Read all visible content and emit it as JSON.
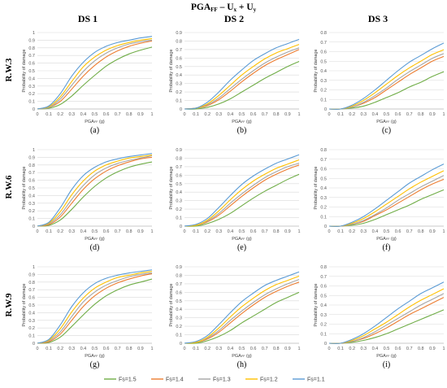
{
  "figure": {
    "super_title": "PGA",
    "super_title_sub": "FF",
    "super_title_rest": " – U",
    "super_title_ux_sub": "x",
    "super_title_plus": " + U",
    "super_title_uy_sub": "y",
    "column_titles": [
      "DS 1",
      "DS 2",
      "DS 3"
    ],
    "row_titles": [
      "R.W.3",
      "R.W.6",
      "R.W.9"
    ],
    "panel_letters": [
      "(a)",
      "(b)",
      "(c)",
      "(d)",
      "(e)",
      "(f)",
      "(g)",
      "(h)",
      "(i)"
    ],
    "ylabel": "Probability of damage",
    "xlabel_main": "PGA",
    "xlabel_sub": "FF",
    "xlabel_unit": " (g)",
    "legend": [
      "Fs=1.5",
      "Fs=1.4",
      "Fs=1.3",
      "Fs=1.2",
      "Fs=1.1"
    ],
    "colors": [
      "#70ad47",
      "#ed7d31",
      "#a5a5a5",
      "#ffc000",
      "#5b9bd5"
    ],
    "grid_color": "#d9d9d9"
  },
  "chart_data": [
    {
      "type": "line",
      "panel": "(a)",
      "row": "R.W.3",
      "column": "DS 1",
      "xlim": [
        0,
        1
      ],
      "ylim": [
        0,
        1
      ],
      "x": [
        0,
        0.1,
        0.2,
        0.3,
        0.4,
        0.5,
        0.6,
        0.7,
        0.8,
        0.9,
        1.0
      ],
      "yticks": [
        0,
        0.1,
        0.2,
        0.3,
        0.4,
        0.5,
        0.6,
        0.7,
        0.8,
        0.9,
        1
      ],
      "series": [
        {
          "name": "Fs=1.5",
          "values": [
            0,
            0.01,
            0.06,
            0.17,
            0.31,
            0.44,
            0.56,
            0.65,
            0.72,
            0.77,
            0.81
          ]
        },
        {
          "name": "Fs=1.4",
          "values": [
            0,
            0.02,
            0.1,
            0.26,
            0.43,
            0.57,
            0.68,
            0.76,
            0.82,
            0.86,
            0.89
          ]
        },
        {
          "name": "Fs=1.3",
          "values": [
            0,
            0.02,
            0.13,
            0.31,
            0.49,
            0.63,
            0.73,
            0.8,
            0.85,
            0.88,
            0.9
          ]
        },
        {
          "name": "Fs=1.2",
          "values": [
            0,
            0.03,
            0.16,
            0.36,
            0.55,
            0.68,
            0.77,
            0.83,
            0.87,
            0.9,
            0.92
          ]
        },
        {
          "name": "Fs=1.1",
          "values": [
            0,
            0.04,
            0.2,
            0.43,
            0.61,
            0.74,
            0.82,
            0.87,
            0.9,
            0.93,
            0.95
          ]
        }
      ]
    },
    {
      "type": "line",
      "panel": "(b)",
      "row": "R.W.3",
      "column": "DS 2",
      "xlim": [
        0,
        1
      ],
      "ylim": [
        0,
        0.9
      ],
      "x": [
        0,
        0.1,
        0.2,
        0.3,
        0.4,
        0.5,
        0.6,
        0.7,
        0.8,
        0.9,
        1.0
      ],
      "yticks": [
        0,
        0.1,
        0.2,
        0.3,
        0.4,
        0.5,
        0.6,
        0.7,
        0.8,
        0.9
      ],
      "series": [
        {
          "name": "Fs=1.5",
          "values": [
            0,
            0.0,
            0.02,
            0.06,
            0.12,
            0.2,
            0.28,
            0.36,
            0.43,
            0.5,
            0.56
          ]
        },
        {
          "name": "Fs=1.4",
          "values": [
            0,
            0.01,
            0.04,
            0.11,
            0.21,
            0.32,
            0.42,
            0.51,
            0.58,
            0.64,
            0.7
          ]
        },
        {
          "name": "Fs=1.3",
          "values": [
            0,
            0.01,
            0.05,
            0.13,
            0.24,
            0.35,
            0.45,
            0.54,
            0.61,
            0.67,
            0.72
          ]
        },
        {
          "name": "Fs=1.2",
          "values": [
            0,
            0.01,
            0.06,
            0.16,
            0.28,
            0.4,
            0.5,
            0.59,
            0.66,
            0.71,
            0.76
          ]
        },
        {
          "name": "Fs=1.1",
          "values": [
            0,
            0.01,
            0.08,
            0.2,
            0.34,
            0.46,
            0.57,
            0.65,
            0.72,
            0.77,
            0.82
          ]
        }
      ]
    },
    {
      "type": "line",
      "panel": "(c)",
      "row": "R.W.3",
      "column": "DS 3",
      "xlim": [
        0,
        1
      ],
      "ylim": [
        0,
        0.8
      ],
      "x": [
        0,
        0.1,
        0.2,
        0.3,
        0.4,
        0.5,
        0.6,
        0.7,
        0.8,
        0.9,
        1.0
      ],
      "yticks": [
        0,
        0.1,
        0.2,
        0.3,
        0.4,
        0.5,
        0.6,
        0.7,
        0.8
      ],
      "series": [
        {
          "name": "Fs=1.5",
          "values": [
            0,
            0.0,
            0.01,
            0.03,
            0.07,
            0.12,
            0.17,
            0.23,
            0.28,
            0.34,
            0.39
          ]
        },
        {
          "name": "Fs=1.4",
          "values": [
            0,
            0.0,
            0.02,
            0.06,
            0.12,
            0.2,
            0.28,
            0.36,
            0.43,
            0.5,
            0.55
          ]
        },
        {
          "name": "Fs=1.3",
          "values": [
            0,
            0.0,
            0.02,
            0.07,
            0.14,
            0.22,
            0.31,
            0.39,
            0.46,
            0.53,
            0.58
          ]
        },
        {
          "name": "Fs=1.2",
          "values": [
            0,
            0.0,
            0.03,
            0.09,
            0.17,
            0.26,
            0.35,
            0.43,
            0.5,
            0.57,
            0.62
          ]
        },
        {
          "name": "Fs=1.1",
          "values": [
            0,
            0.0,
            0.04,
            0.11,
            0.2,
            0.3,
            0.4,
            0.49,
            0.56,
            0.63,
            0.69
          ]
        }
      ]
    },
    {
      "type": "line",
      "panel": "(d)",
      "row": "R.W.6",
      "column": "DS 1",
      "xlim": [
        0,
        1
      ],
      "ylim": [
        0,
        1
      ],
      "x": [
        0,
        0.1,
        0.2,
        0.3,
        0.4,
        0.5,
        0.6,
        0.7,
        0.8,
        0.9,
        1.0
      ],
      "yticks": [
        0,
        0.1,
        0.2,
        0.3,
        0.4,
        0.5,
        0.6,
        0.7,
        0.8,
        0.9,
        1
      ],
      "series": [
        {
          "name": "Fs=1.5",
          "values": [
            0,
            0.01,
            0.08,
            0.22,
            0.38,
            0.52,
            0.63,
            0.71,
            0.77,
            0.81,
            0.84
          ]
        },
        {
          "name": "Fs=1.4",
          "values": [
            0,
            0.02,
            0.12,
            0.3,
            0.48,
            0.62,
            0.72,
            0.79,
            0.84,
            0.88,
            0.9
          ]
        },
        {
          "name": "Fs=1.3",
          "values": [
            0,
            0.03,
            0.15,
            0.35,
            0.53,
            0.67,
            0.76,
            0.82,
            0.86,
            0.89,
            0.92
          ]
        },
        {
          "name": "Fs=1.2",
          "values": [
            0,
            0.04,
            0.19,
            0.41,
            0.59,
            0.72,
            0.8,
            0.85,
            0.89,
            0.91,
            0.93
          ]
        },
        {
          "name": "Fs=1.1",
          "values": [
            0,
            0.05,
            0.24,
            0.48,
            0.66,
            0.77,
            0.84,
            0.88,
            0.91,
            0.93,
            0.95
          ]
        }
      ]
    },
    {
      "type": "line",
      "panel": "(e)",
      "row": "R.W.6",
      "column": "DS 2",
      "xlim": [
        0,
        1
      ],
      "ylim": [
        0,
        0.9
      ],
      "x": [
        0,
        0.1,
        0.2,
        0.3,
        0.4,
        0.5,
        0.6,
        0.7,
        0.8,
        0.9,
        1.0
      ],
      "yticks": [
        0,
        0.1,
        0.2,
        0.3,
        0.4,
        0.5,
        0.6,
        0.7,
        0.8,
        0.9
      ],
      "series": [
        {
          "name": "Fs=1.5",
          "values": [
            0,
            0.0,
            0.03,
            0.08,
            0.15,
            0.24,
            0.33,
            0.41,
            0.48,
            0.55,
            0.61
          ]
        },
        {
          "name": "Fs=1.4",
          "values": [
            0,
            0.01,
            0.05,
            0.13,
            0.24,
            0.35,
            0.45,
            0.54,
            0.61,
            0.67,
            0.72
          ]
        },
        {
          "name": "Fs=1.3",
          "values": [
            0,
            0.01,
            0.06,
            0.15,
            0.27,
            0.38,
            0.48,
            0.57,
            0.64,
            0.7,
            0.74
          ]
        },
        {
          "name": "Fs=1.2",
          "values": [
            0,
            0.01,
            0.07,
            0.18,
            0.31,
            0.43,
            0.53,
            0.61,
            0.68,
            0.73,
            0.78
          ]
        },
        {
          "name": "Fs=1.1",
          "values": [
            0,
            0.02,
            0.09,
            0.22,
            0.36,
            0.49,
            0.59,
            0.67,
            0.74,
            0.79,
            0.84
          ]
        }
      ]
    },
    {
      "type": "line",
      "panel": "(f)",
      "row": "R.W.6",
      "column": "DS 3",
      "xlim": [
        0,
        1
      ],
      "ylim": [
        0,
        0.8
      ],
      "x": [
        0,
        0.1,
        0.2,
        0.3,
        0.4,
        0.5,
        0.6,
        0.7,
        0.8,
        0.9,
        1.0
      ],
      "yticks": [
        0,
        0.1,
        0.2,
        0.3,
        0.4,
        0.5,
        0.6,
        0.7,
        0.8
      ],
      "series": [
        {
          "name": "Fs=1.5",
          "values": [
            0,
            0.0,
            0.01,
            0.03,
            0.07,
            0.12,
            0.17,
            0.22,
            0.28,
            0.33,
            0.38
          ]
        },
        {
          "name": "Fs=1.4",
          "values": [
            0,
            0.0,
            0.02,
            0.05,
            0.11,
            0.17,
            0.24,
            0.31,
            0.38,
            0.44,
            0.49
          ]
        },
        {
          "name": "Fs=1.3",
          "values": [
            0,
            0.0,
            0.02,
            0.06,
            0.12,
            0.19,
            0.27,
            0.34,
            0.41,
            0.47,
            0.53
          ]
        },
        {
          "name": "Fs=1.2",
          "values": [
            0,
            0.0,
            0.03,
            0.08,
            0.15,
            0.23,
            0.31,
            0.39,
            0.46,
            0.52,
            0.58
          ]
        },
        {
          "name": "Fs=1.1",
          "values": [
            0,
            0.0,
            0.04,
            0.1,
            0.18,
            0.27,
            0.36,
            0.45,
            0.52,
            0.59,
            0.65
          ]
        }
      ]
    },
    {
      "type": "line",
      "panel": "(g)",
      "row": "R.W.9",
      "column": "DS 1",
      "xlim": [
        0,
        1
      ],
      "ylim": [
        0,
        1
      ],
      "x": [
        0,
        0.1,
        0.2,
        0.3,
        0.4,
        0.5,
        0.6,
        0.7,
        0.8,
        0.9,
        1.0
      ],
      "yticks": [
        0,
        0.1,
        0.2,
        0.3,
        0.4,
        0.5,
        0.6,
        0.7,
        0.8,
        0.9,
        1
      ],
      "series": [
        {
          "name": "Fs=1.5",
          "values": [
            0,
            0.01,
            0.08,
            0.22,
            0.37,
            0.51,
            0.62,
            0.7,
            0.76,
            0.8,
            0.84
          ]
        },
        {
          "name": "Fs=1.4",
          "values": [
            0,
            0.02,
            0.12,
            0.3,
            0.48,
            0.62,
            0.72,
            0.79,
            0.84,
            0.88,
            0.91
          ]
        },
        {
          "name": "Fs=1.3",
          "values": [
            0,
            0.03,
            0.15,
            0.35,
            0.54,
            0.67,
            0.76,
            0.82,
            0.87,
            0.9,
            0.92
          ]
        },
        {
          "name": "Fs=1.2",
          "values": [
            0,
            0.04,
            0.19,
            0.41,
            0.59,
            0.72,
            0.8,
            0.86,
            0.89,
            0.92,
            0.94
          ]
        },
        {
          "name": "Fs=1.1",
          "values": [
            0,
            0.05,
            0.24,
            0.48,
            0.66,
            0.78,
            0.85,
            0.89,
            0.92,
            0.94,
            0.96
          ]
        }
      ]
    },
    {
      "type": "line",
      "panel": "(h)",
      "row": "R.W.9",
      "column": "DS 2",
      "xlim": [
        0,
        1
      ],
      "ylim": [
        0,
        0.9
      ],
      "x": [
        0,
        0.1,
        0.2,
        0.3,
        0.4,
        0.5,
        0.6,
        0.7,
        0.8,
        0.9,
        1.0
      ],
      "yticks": [
        0,
        0.1,
        0.2,
        0.3,
        0.4,
        0.5,
        0.6,
        0.7,
        0.8,
        0.9
      ],
      "series": [
        {
          "name": "Fs=1.5",
          "values": [
            0,
            0.0,
            0.03,
            0.08,
            0.15,
            0.24,
            0.32,
            0.4,
            0.48,
            0.54,
            0.6
          ]
        },
        {
          "name": "Fs=1.4",
          "values": [
            0,
            0.01,
            0.05,
            0.13,
            0.24,
            0.35,
            0.45,
            0.54,
            0.61,
            0.67,
            0.72
          ]
        },
        {
          "name": "Fs=1.3",
          "values": [
            0,
            0.01,
            0.06,
            0.15,
            0.27,
            0.38,
            0.48,
            0.57,
            0.64,
            0.7,
            0.75
          ]
        },
        {
          "name": "Fs=1.2",
          "values": [
            0,
            0.01,
            0.07,
            0.18,
            0.31,
            0.43,
            0.53,
            0.62,
            0.69,
            0.74,
            0.79
          ]
        },
        {
          "name": "Fs=1.1",
          "values": [
            0,
            0.02,
            0.09,
            0.22,
            0.36,
            0.49,
            0.59,
            0.68,
            0.74,
            0.79,
            0.84
          ]
        }
      ]
    },
    {
      "type": "line",
      "panel": "(i)",
      "row": "R.W.9",
      "column": "DS 3",
      "xlim": [
        0,
        1
      ],
      "ylim": [
        0,
        0.8
      ],
      "x": [
        0,
        0.1,
        0.2,
        0.3,
        0.4,
        0.5,
        0.6,
        0.7,
        0.8,
        0.9,
        1.0
      ],
      "yticks": [
        0,
        0.1,
        0.2,
        0.3,
        0.4,
        0.5,
        0.6,
        0.7,
        0.8
      ],
      "series": [
        {
          "name": "Fs=1.5",
          "values": [
            0,
            0.0,
            0.01,
            0.03,
            0.06,
            0.1,
            0.15,
            0.2,
            0.25,
            0.3,
            0.35
          ]
        },
        {
          "name": "Fs=1.4",
          "values": [
            0,
            0.0,
            0.02,
            0.05,
            0.1,
            0.16,
            0.23,
            0.3,
            0.36,
            0.42,
            0.48
          ]
        },
        {
          "name": "Fs=1.3",
          "values": [
            0,
            0.0,
            0.02,
            0.06,
            0.12,
            0.19,
            0.26,
            0.33,
            0.4,
            0.46,
            0.52
          ]
        },
        {
          "name": "Fs=1.2",
          "values": [
            0,
            0.0,
            0.03,
            0.08,
            0.15,
            0.22,
            0.3,
            0.38,
            0.45,
            0.51,
            0.57
          ]
        },
        {
          "name": "Fs=1.1",
          "values": [
            0,
            0.0,
            0.04,
            0.1,
            0.18,
            0.27,
            0.36,
            0.44,
            0.52,
            0.58,
            0.64
          ]
        }
      ]
    }
  ]
}
